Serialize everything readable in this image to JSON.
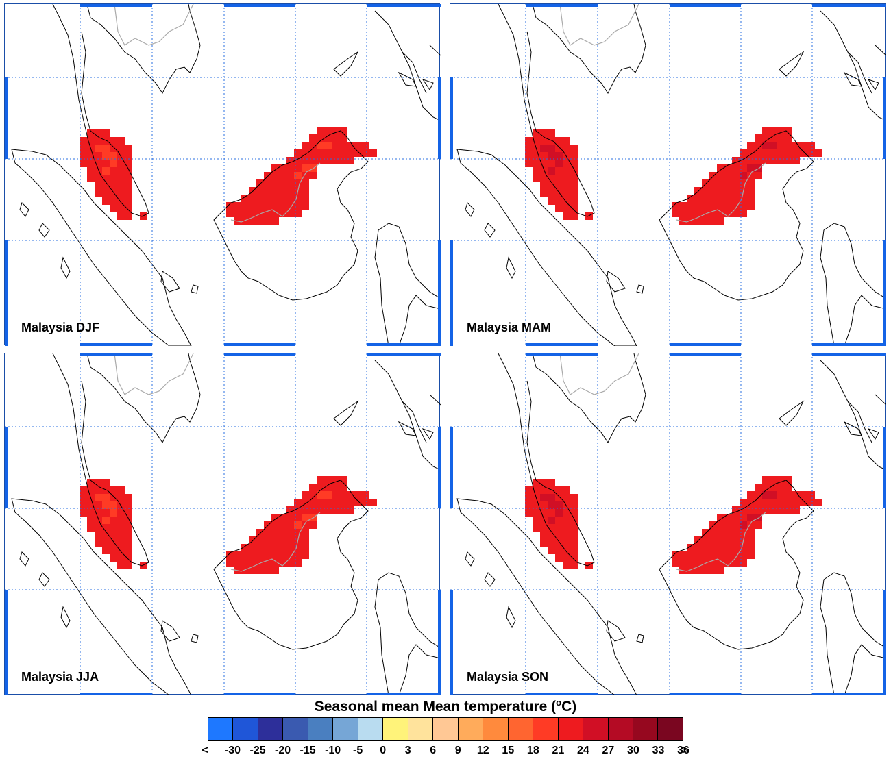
{
  "panels": [
    {
      "label": "Malaysia DJF"
    },
    {
      "label": "Malaysia MAM"
    },
    {
      "label": "Malaysia JJA"
    },
    {
      "label": "Malaysia SON"
    }
  ],
  "colorbar": {
    "title_main": "Seasonal mean Mean temperature (",
    "title_sup": "o",
    "title_end": "C)",
    "colors": [
      "#1e78ff",
      "#1f56d8",
      "#2d2f9a",
      "#3a5ab0",
      "#4a7fc0",
      "#76a6d6",
      "#b9dcf0",
      "#fff37a",
      "#ffe39c",
      "#ffc895",
      "#ffab5b",
      "#ff8a3d",
      "#ff6530",
      "#ff3b25",
      "#ee1b1f",
      "#d10f25",
      "#b40b24",
      "#96081f",
      "#7a0620"
    ],
    "ticks": [
      "<",
      "-30",
      "-25",
      "-20",
      "-15",
      "-10",
      "-5",
      "0",
      "3",
      "6",
      "9",
      "12",
      "15",
      "18",
      "21",
      "24",
      "27",
      "30",
      "33",
      "36",
      ">"
    ]
  },
  "map_colors": {
    "grid": "#2a6fe0",
    "coast": "#000000",
    "border": "#aaaaaa",
    "frame_accent": "#1463e6"
  }
}
